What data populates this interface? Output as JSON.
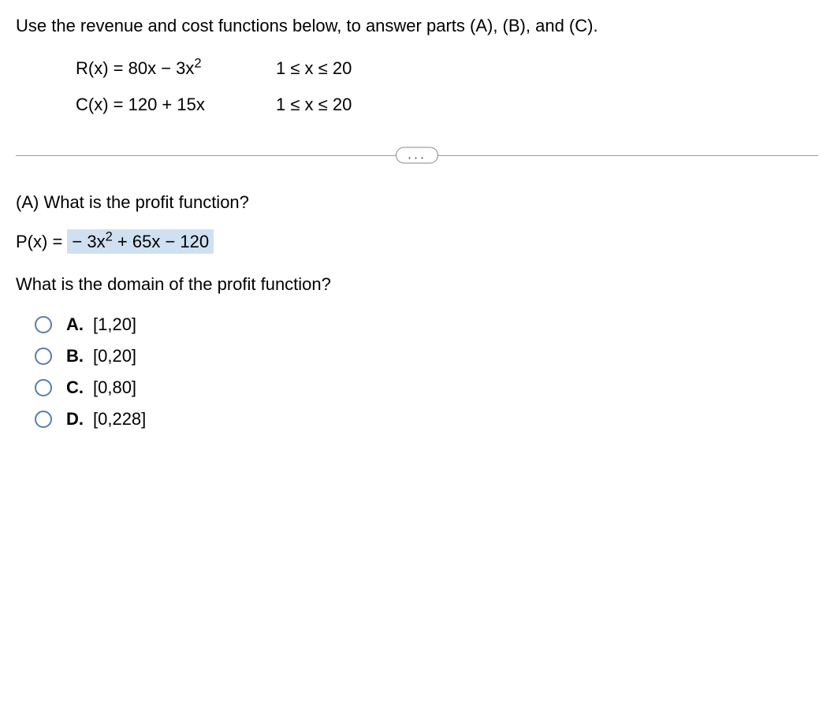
{
  "intro": "Use the revenue and cost functions below, to answer parts (A), (B), and (C).",
  "equations": {
    "revenue": {
      "lhs": "R(x) = 80x − 3x",
      "exp": "2",
      "domain": "1 ≤ x ≤ 20"
    },
    "cost": {
      "lhs": "C(x) = 120 + 15x",
      "domain": "1 ≤ x ≤ 20"
    }
  },
  "divider_label": "...",
  "partA": {
    "question": "(A) What is the profit function?",
    "profit_prefix": "P(x) = ",
    "profit_neg": " − 3x",
    "profit_exp": "2",
    "profit_rest": " + 65x − 120",
    "domain_question": "What is the domain of the profit function?",
    "options": [
      {
        "label": "A.",
        "text": "[1,20]"
      },
      {
        "label": "B.",
        "text": "[0,20]"
      },
      {
        "label": "C.",
        "text": "[0,80]"
      },
      {
        "label": "D.",
        "text": "[0,228]"
      }
    ]
  },
  "colors": {
    "highlight_bg": "#cfe0f2",
    "radio_border": "#5a7da8",
    "divider_line": "#999999",
    "text": "#000000",
    "background": "#ffffff"
  }
}
